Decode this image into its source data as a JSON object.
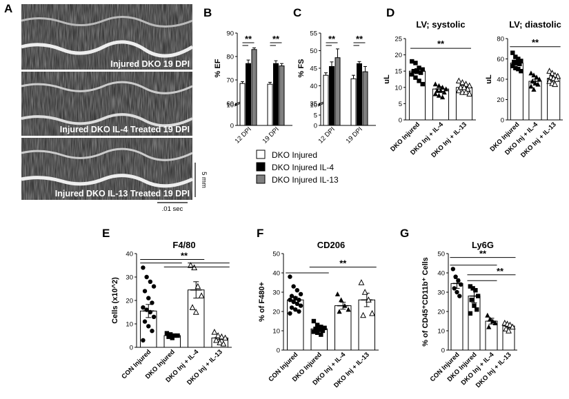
{
  "panels": {
    "A": "A",
    "B": "B",
    "C": "C",
    "D": "D",
    "E": "E",
    "F": "F",
    "G": "G"
  },
  "echo": {
    "labels": [
      "Injured DKO 19 DPI",
      "Injured DKO IL-4 Treated 19 DPI",
      "Injured DKO IL-13 Treated 19 DPI"
    ],
    "scale_v": "5 mm",
    "scale_h": ".01 sec"
  },
  "legend": {
    "items": [
      {
        "label": "DKO Injured",
        "color": "#ffffff"
      },
      {
        "label": "DKO Injured IL-4",
        "color": "#000000"
      },
      {
        "label": "DKO Injured IL-13",
        "color": "#808080"
      }
    ]
  },
  "colors": {
    "il4": "#000000",
    "il13": "#808080",
    "injured": "#ffffff"
  },
  "sig": "**",
  "chart_data": [
    {
      "id": "B",
      "type": "bar",
      "ylabel": "% EF",
      "categories": [
        "12 DPI",
        "19 DPI"
      ],
      "ylim": [
        0,
        90
      ],
      "axis_break": [
        10,
        60
      ],
      "yticks": [
        0,
        10,
        60,
        70,
        80,
        90
      ],
      "series": [
        {
          "name": "DKO Injured",
          "values": [
            68.5,
            68.2
          ],
          "errors": [
            0.8,
            0.8
          ]
        },
        {
          "name": "DKO Injured IL-4",
          "values": [
            77,
            77
          ],
          "errors": [
            1.5,
            1.2
          ]
        },
        {
          "name": "DKO Injured IL-13",
          "values": [
            83,
            76
          ],
          "errors": [
            0.7,
            1.0
          ]
        }
      ]
    },
    {
      "id": "C",
      "type": "bar",
      "ylabel": "% FS",
      "categories": [
        "12 DPI",
        "19 DPI"
      ],
      "ylim": [
        0,
        55
      ],
      "axis_break": [
        10,
        35
      ],
      "yticks": [
        0,
        5,
        10,
        35,
        40,
        45,
        50,
        55
      ],
      "series": [
        {
          "name": "DKO Injured",
          "values": [
            43,
            42
          ],
          "errors": [
            0.7,
            1.0
          ]
        },
        {
          "name": "DKO Injured IL-4",
          "values": [
            45.5,
            46.3
          ],
          "errors": [
            1.3,
            0.6
          ]
        },
        {
          "name": "DKO Injured IL-13",
          "values": [
            48,
            44
          ],
          "errors": [
            2.5,
            1.5
          ]
        }
      ]
    },
    {
      "id": "D1",
      "type": "bar",
      "title": "LV; systolic",
      "ylabel": "uL",
      "categories": [
        "DKO Injured",
        "DKO Inj + IL-4",
        "DKO Inj + IL-13"
      ],
      "ylim": [
        0,
        25
      ],
      "yticks": [
        0,
        5,
        10,
        15,
        20,
        25
      ],
      "values": [
        15,
        9.5,
        10
      ],
      "errors": [
        0.8,
        0.7,
        0.6
      ],
      "markers": [
        "square",
        "triangle-filled",
        "triangle-open"
      ],
      "points": [
        [
          18,
          17.5,
          16,
          15.5,
          15,
          15,
          14.5,
          14,
          13,
          12,
          11
        ],
        [
          11,
          10.5,
          10,
          9.5,
          9,
          9,
          8.5,
          8,
          7.5,
          7
        ],
        [
          12,
          11.5,
          11,
          10.5,
          10,
          10,
          9.5,
          9,
          8.5,
          8.5,
          8
        ]
      ]
    },
    {
      "id": "D2",
      "type": "bar",
      "title": "LV; diastolic",
      "ylabel": "uL",
      "categories": [
        "DKO Injured",
        "DKO Inj + IL-4",
        "DKO Inj + IL-13"
      ],
      "ylim": [
        0,
        80
      ],
      "yticks": [
        0,
        20,
        40,
        60,
        80
      ],
      "values": [
        56,
        38,
        41
      ],
      "errors": [
        2.0,
        2.0,
        1.8
      ],
      "markers": [
        "square",
        "triangle-filled",
        "triangle-open"
      ],
      "points": [
        [
          66,
          62,
          60,
          58,
          57,
          56,
          55,
          53,
          51,
          50,
          48
        ],
        [
          46,
          44,
          42,
          40,
          38,
          36,
          35,
          33,
          30
        ],
        [
          48,
          46,
          44,
          43,
          42,
          41,
          40,
          38,
          36,
          35
        ]
      ]
    },
    {
      "id": "E",
      "type": "bar",
      "title": "F4/80",
      "ylabel": "Cells (x10^2)",
      "categories": [
        "CON Injured",
        "DKO Injured",
        "DKO Inj + IL-4",
        "DKO Inj + IL-13"
      ],
      "ylim": [
        0,
        40
      ],
      "yticks": [
        0,
        10,
        20,
        30,
        40
      ],
      "values": [
        15.5,
        5,
        24.5,
        4
      ],
      "errors": [
        2.8,
        0.6,
        3.5,
        0.7
      ],
      "markers": [
        "circle-filled",
        "square",
        "triangle-open",
        "triangle-open"
      ],
      "points": [
        [
          34,
          30,
          28,
          26,
          24,
          21,
          19,
          17,
          16,
          15,
          13,
          11,
          9,
          7,
          3
        ],
        [
          6,
          5.5,
          5,
          5,
          4.5,
          4
        ],
        [
          35,
          34,
          26,
          22,
          17,
          15
        ],
        [
          6.5,
          5,
          4.5,
          4,
          3,
          2,
          1.5
        ]
      ]
    },
    {
      "id": "F",
      "type": "bar",
      "title": "CD206",
      "ylabel": "% of F480+",
      "categories": [
        "CON Injured",
        "DKO Injured",
        "DKO Inj + IL-4",
        "DKO Inj + IL-13"
      ],
      "ylim": [
        0,
        50
      ],
      "yticks": [
        0,
        10,
        20,
        30,
        40,
        50
      ],
      "values": [
        26,
        11,
        23,
        26
      ],
      "errors": [
        1.5,
        0.8,
        1.8,
        3.5
      ],
      "markers": [
        "circle-filled",
        "square",
        "triangle-filled",
        "triangle-open"
      ],
      "points": [
        [
          38,
          33,
          31,
          29,
          28,
          27,
          26,
          26,
          25,
          24,
          23,
          22,
          21,
          20,
          19
        ],
        [
          15,
          13,
          12,
          11.5,
          11,
          10.5,
          10,
          9.5,
          9,
          8
        ],
        [
          29,
          26,
          23,
          21,
          20
        ],
        [
          35,
          30,
          26,
          19,
          18
        ]
      ]
    },
    {
      "id": "G",
      "type": "bar",
      "title": "Ly6G",
      "ylabel": "% of CD45⁺CD11b⁺ Cells",
      "categories": [
        "CON Injured",
        "DKO Injured",
        "DKO Inj + IL-4",
        "DKO Inj + IL-13"
      ],
      "ylim": [
        0,
        50
      ],
      "yticks": [
        0,
        10,
        20,
        30,
        40,
        50
      ],
      "values": [
        34.5,
        28,
        15,
        12.5
      ],
      "errors": [
        2.5,
        3.5,
        1.5,
        1.0
      ],
      "markers": [
        "circle-filled",
        "square",
        "triangle-filled",
        "triangle-open"
      ],
      "points": [
        [
          42,
          38,
          36,
          34,
          32,
          30,
          28
        ],
        [
          33,
          32,
          31,
          28,
          26,
          23,
          21,
          19
        ],
        [
          18,
          16,
          15,
          14,
          12
        ],
        [
          14,
          13.5,
          13,
          12,
          11,
          10
        ]
      ]
    }
  ]
}
